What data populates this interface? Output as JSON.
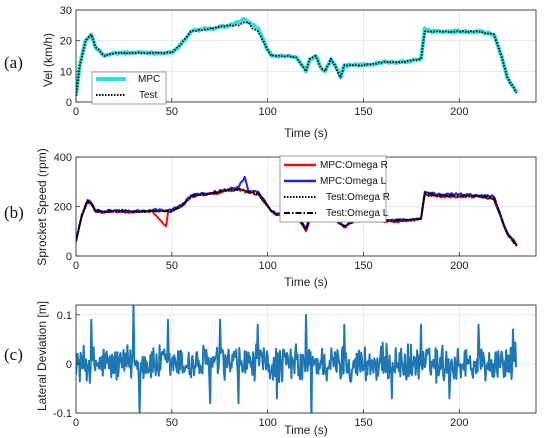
{
  "chart_data": [
    {
      "type": "line",
      "panel_label": "(a)",
      "xlabel": "Time (s)",
      "ylabel": "Vel (km/h)",
      "xlim": [
        0,
        240
      ],
      "ylim": [
        0,
        30
      ],
      "xticks": [
        0,
        50,
        100,
        150,
        200
      ],
      "yticks": [
        0,
        10,
        20,
        30
      ],
      "grid": true,
      "legend_position": "bottom-left",
      "series": [
        {
          "name": "MPC",
          "color": "#33dddd",
          "style": "solid",
          "x": [
            0,
            2,
            5,
            8,
            10,
            15,
            20,
            30,
            40,
            50,
            55,
            60,
            70,
            80,
            85,
            88,
            90,
            92,
            95,
            100,
            102,
            105,
            110,
            115,
            120,
            122,
            125,
            128,
            130,
            133,
            135,
            138,
            140,
            145,
            150,
            160,
            170,
            180,
            182,
            185,
            190,
            200,
            210,
            218,
            222,
            225,
            230
          ],
          "y": [
            2,
            12,
            20,
            22,
            18,
            15,
            16,
            16,
            16,
            16,
            19,
            23,
            24,
            25,
            26,
            27,
            26,
            25,
            24,
            17,
            15,
            15,
            15,
            14.5,
            10,
            14,
            15,
            11,
            10,
            14,
            12,
            8,
            12,
            12,
            12,
            13,
            13,
            14,
            24,
            23,
            23,
            23,
            23,
            22,
            15,
            8,
            3
          ]
        },
        {
          "name": "Test",
          "color": "#000000",
          "style": "dotted",
          "x": [
            0,
            2,
            5,
            8,
            10,
            15,
            20,
            30,
            40,
            50,
            55,
            60,
            70,
            80,
            85,
            88,
            90,
            92,
            95,
            100,
            102,
            105,
            110,
            115,
            120,
            122,
            125,
            128,
            130,
            133,
            135,
            138,
            140,
            145,
            150,
            160,
            170,
            180,
            182,
            185,
            190,
            200,
            210,
            218,
            222,
            225,
            230
          ],
          "y": [
            2,
            12,
            20,
            22,
            18,
            15,
            16,
            16,
            16,
            16,
            19,
            23,
            24,
            25,
            25,
            26,
            26,
            24,
            23,
            17,
            15,
            15,
            15,
            14.5,
            10,
            14,
            15,
            11,
            10,
            14,
            12,
            8,
            12,
            12,
            12,
            13,
            13,
            14,
            23,
            23,
            23,
            23,
            23,
            22,
            15,
            8,
            3
          ]
        }
      ]
    },
    {
      "type": "line",
      "panel_label": "(b)",
      "xlabel": "Time (s)",
      "ylabel": "Sprocket Speed (rpm)",
      "xlim": [
        0,
        240
      ],
      "ylim": [
        0,
        400
      ],
      "xticks": [
        0,
        50,
        100,
        150,
        200
      ],
      "yticks": [
        0,
        200,
        400
      ],
      "grid": true,
      "legend_position": "top-right",
      "series": [
        {
          "name": "MPC:Omega R",
          "color": "#ee1111",
          "style": "solid",
          "x": [
            0,
            3,
            6,
            8,
            10,
            15,
            20,
            30,
            40,
            47,
            48,
            50,
            55,
            60,
            70,
            80,
            85,
            90,
            95,
            100,
            102,
            105,
            110,
            115,
            120,
            122,
            125,
            130,
            135,
            140,
            145,
            150,
            160,
            170,
            180,
            182,
            185,
            190,
            200,
            210,
            218,
            222,
            225,
            230
          ],
          "y": [
            60,
            160,
            220,
            210,
            180,
            175,
            180,
            175,
            180,
            120,
            175,
            180,
            200,
            240,
            250,
            265,
            270,
            255,
            250,
            200,
            180,
            165,
            165,
            160,
            100,
            150,
            160,
            140,
            145,
            115,
            140,
            145,
            140,
            140,
            150,
            250,
            245,
            240,
            240,
            240,
            230,
            150,
            90,
            40
          ]
        },
        {
          "name": "MPC:Omega L",
          "color": "#2222dd",
          "style": "solid",
          "x": [
            0,
            3,
            6,
            8,
            10,
            15,
            20,
            30,
            40,
            47,
            50,
            55,
            60,
            70,
            80,
            85,
            88,
            90,
            95,
            100,
            102,
            105,
            110,
            115,
            120,
            122,
            125,
            130,
            135,
            140,
            145,
            150,
            160,
            170,
            180,
            182,
            185,
            190,
            200,
            210,
            218,
            222,
            225,
            230
          ],
          "y": [
            60,
            165,
            225,
            215,
            185,
            180,
            185,
            180,
            185,
            185,
            185,
            205,
            245,
            255,
            270,
            280,
            320,
            260,
            260,
            205,
            180,
            170,
            170,
            165,
            110,
            155,
            165,
            145,
            150,
            120,
            145,
            150,
            145,
            145,
            150,
            260,
            255,
            250,
            250,
            245,
            240,
            155,
            95,
            45
          ]
        },
        {
          "name": "Test:Omega R",
          "color": "#000000",
          "style": "dotted",
          "x": [
            0,
            3,
            6,
            8,
            10,
            15,
            20,
            30,
            40,
            50,
            55,
            60,
            70,
            80,
            85,
            90,
            95,
            100,
            102,
            105,
            110,
            115,
            120,
            122,
            125,
            130,
            135,
            140,
            145,
            150,
            160,
            170,
            180,
            182,
            185,
            190,
            200,
            210,
            218,
            222,
            225,
            230
          ],
          "y": [
            60,
            160,
            220,
            210,
            180,
            178,
            180,
            178,
            180,
            180,
            200,
            240,
            250,
            265,
            270,
            258,
            250,
            200,
            180,
            165,
            165,
            160,
            105,
            150,
            160,
            142,
            146,
            118,
            142,
            146,
            142,
            142,
            150,
            250,
            245,
            242,
            242,
            240,
            232,
            150,
            90,
            40
          ]
        },
        {
          "name": "Test:Omega L",
          "color": "#000000",
          "style": "dashdot",
          "x": [
            0,
            3,
            6,
            8,
            10,
            15,
            20,
            30,
            40,
            50,
            55,
            60,
            70,
            80,
            85,
            90,
            95,
            100,
            102,
            105,
            110,
            115,
            120,
            122,
            125,
            130,
            135,
            140,
            145,
            150,
            160,
            170,
            180,
            182,
            185,
            190,
            200,
            210,
            218,
            222,
            225,
            230
          ],
          "y": [
            60,
            165,
            225,
            213,
            183,
            180,
            182,
            180,
            182,
            182,
            202,
            242,
            252,
            268,
            272,
            258,
            255,
            203,
            180,
            168,
            168,
            162,
            108,
            152,
            162,
            144,
            148,
            120,
            144,
            148,
            144,
            144,
            150,
            255,
            250,
            245,
            245,
            243,
            236,
            152,
            92,
            42
          ]
        }
      ]
    },
    {
      "type": "line",
      "panel_label": "(c)",
      "xlabel": "Time (s)",
      "ylabel": "Lateral Deviation [m]",
      "xlim": [
        0,
        240
      ],
      "ylim": [
        -0.1,
        0.12
      ],
      "xticks": [
        0,
        50,
        100,
        150,
        200
      ],
      "yticks": [
        -0.1,
        0,
        0.1
      ],
      "grid": true,
      "series": [
        {
          "color": "#1f77b4",
          "style": "solid",
          "x": [
            0,
            230
          ],
          "y": [
            0,
            0
          ],
          "noise": {
            "step": 0.4,
            "amplitude": 0.045,
            "spikes": [
              [
                8,
                0.09
              ],
              [
                30,
                0.12
              ],
              [
                33,
                -0.1
              ],
              [
                48,
                0.09
              ],
              [
                70,
                -0.08
              ],
              [
                75,
                0.09
              ],
              [
                85,
                -0.08
              ],
              [
                95,
                0.08
              ],
              [
                105,
                -0.07
              ],
              [
                120,
                0.1
              ],
              [
                123,
                -0.12
              ],
              [
                140,
                0.08
              ],
              [
                165,
                -0.07
              ],
              [
                180,
                0.08
              ],
              [
                195,
                -0.07
              ],
              [
                210,
                0.08
              ],
              [
                228,
                0.07
              ]
            ]
          }
        }
      ]
    }
  ]
}
